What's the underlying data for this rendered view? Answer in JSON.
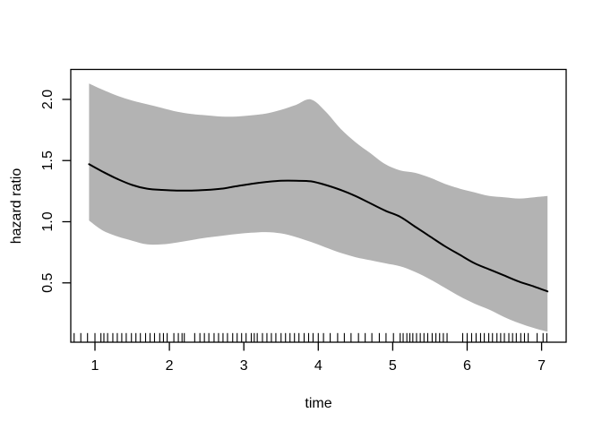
{
  "figure": {
    "background": "#ffffff",
    "description": "R-style plot of a spline-estimated hazard ratio over time with shaded 95% confidence band and rug of observation times"
  },
  "chart_data": {
    "type": "line",
    "title": "",
    "xlabel": "time",
    "ylabel": "hazard ratio",
    "xlim": [
      0.675,
      7.33
    ],
    "ylim": [
      0.015,
      2.245
    ],
    "x_ticks": [
      1,
      2,
      3,
      4,
      5,
      6,
      7
    ],
    "x_tick_labels": [
      "1",
      "2",
      "3",
      "4",
      "5",
      "6",
      "7"
    ],
    "y_ticks": [
      0.5,
      1.0,
      1.5,
      2.0
    ],
    "y_tick_labels": [
      "0.5",
      "1.0",
      "1.5",
      "2.0"
    ],
    "grid": false,
    "legend": false,
    "colors": {
      "line": "#000000",
      "band": "#b3b3b3",
      "axis": "#000000",
      "text": "#000000"
    },
    "x": [
      0.92,
      1.1,
      1.3,
      1.5,
      1.7,
      1.9,
      2.1,
      2.3,
      2.5,
      2.7,
      2.9,
      3.1,
      3.3,
      3.5,
      3.7,
      3.9,
      4.1,
      4.3,
      4.5,
      4.7,
      4.9,
      5.1,
      5.3,
      5.5,
      5.7,
      5.9,
      6.1,
      6.3,
      6.5,
      6.7,
      6.9,
      7.08
    ],
    "series": [
      {
        "name": "hazard ratio",
        "role": "center-line",
        "values": [
          1.47,
          1.41,
          1.35,
          1.3,
          1.27,
          1.26,
          1.255,
          1.255,
          1.26,
          1.27,
          1.29,
          1.31,
          1.325,
          1.335,
          1.335,
          1.33,
          1.3,
          1.26,
          1.21,
          1.15,
          1.09,
          1.04,
          0.96,
          0.88,
          0.8,
          0.73,
          0.66,
          0.61,
          0.56,
          0.51,
          0.47,
          0.43
        ]
      },
      {
        "name": "upper 95% CI",
        "role": "band-upper",
        "values": [
          2.13,
          2.08,
          2.03,
          1.99,
          1.96,
          1.93,
          1.9,
          1.88,
          1.87,
          1.86,
          1.86,
          1.87,
          1.885,
          1.915,
          1.955,
          2.0,
          1.9,
          1.76,
          1.65,
          1.56,
          1.47,
          1.42,
          1.4,
          1.36,
          1.31,
          1.27,
          1.24,
          1.21,
          1.2,
          1.19,
          1.2,
          1.21
        ]
      },
      {
        "name": "lower 95% CI",
        "role": "band-lower",
        "values": [
          1.01,
          0.93,
          0.88,
          0.845,
          0.815,
          0.815,
          0.83,
          0.85,
          0.87,
          0.885,
          0.9,
          0.91,
          0.915,
          0.905,
          0.875,
          0.835,
          0.79,
          0.745,
          0.71,
          0.685,
          0.66,
          0.635,
          0.59,
          0.53,
          0.46,
          0.39,
          0.33,
          0.28,
          0.22,
          0.17,
          0.13,
          0.1
        ]
      }
    ],
    "rug_x": [
      0.72,
      0.81,
      0.9,
      1.0,
      1.08,
      1.12,
      1.17,
      1.24,
      1.3,
      1.36,
      1.42,
      1.49,
      1.55,
      1.61,
      1.68,
      1.74,
      1.8,
      1.87,
      1.92,
      1.97,
      2.06,
      2.12,
      2.17,
      2.2,
      2.34,
      2.41,
      2.47,
      2.53,
      2.6,
      2.66,
      2.72,
      2.78,
      2.85,
      2.91,
      2.97,
      3.03,
      3.1,
      3.14,
      3.18,
      3.25,
      3.31,
      3.37,
      3.43,
      3.5,
      3.56,
      3.62,
      3.68,
      3.74,
      3.81,
      3.87,
      3.93,
      4.0,
      4.07,
      4.16,
      4.26,
      4.35,
      4.44,
      4.54,
      4.63,
      4.72,
      4.82,
      4.91,
      5.01,
      5.1,
      5.14,
      5.19,
      5.23,
      5.27,
      5.32,
      5.37,
      5.42,
      5.47,
      5.53,
      5.58,
      5.63,
      5.68,
      5.73,
      5.94,
      6.0,
      6.06,
      6.12,
      6.18,
      6.23,
      6.29,
      6.34,
      6.4,
      6.45,
      6.5,
      6.56,
      6.61,
      6.66,
      6.72,
      6.77,
      6.82,
      6.94,
      7.02,
      7.07
    ]
  }
}
